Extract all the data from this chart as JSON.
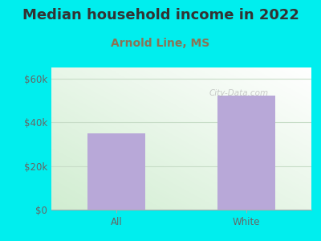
{
  "title": "Median household income in 2022",
  "subtitle": "Arnold Line, MS",
  "categories": [
    "All",
    "White"
  ],
  "values": [
    35000,
    52000
  ],
  "bar_color": "#b8a8d8",
  "title_color": "#333333",
  "subtitle_color": "#8b7355",
  "background_color": "#00EEEE",
  "yticks": [
    0,
    20000,
    40000,
    60000
  ],
  "ytick_labels": [
    "$0",
    "$20k",
    "$40k",
    "$60k"
  ],
  "ylim": [
    0,
    65000
  ],
  "watermark": "City-Data.com",
  "title_fontsize": 13,
  "subtitle_fontsize": 10,
  "tick_fontsize": 8.5,
  "axis_label_color": "#666666",
  "grid_color": "#c8ddc8",
  "chart_grad_left": "#d0ecd0",
  "chart_grad_right": "#f0f8f0"
}
